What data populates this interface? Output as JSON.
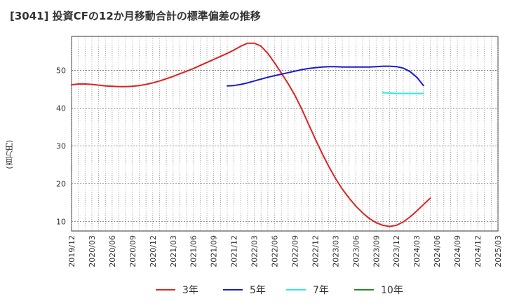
{
  "chart_data": {
    "type": "line",
    "title": "[3041]  投資CFの12か月移動合計の標準偏差の推移",
    "ylabel": "(百万円)",
    "xlabel": "",
    "ylim": [
      7.5,
      59
    ],
    "y_ticks": [
      10,
      20,
      30,
      40,
      50
    ],
    "x_ticks": [
      "2019/12",
      "2020/03",
      "2020/06",
      "2020/09",
      "2020/12",
      "2021/03",
      "2021/06",
      "2021/09",
      "2021/12",
      "2022/03",
      "2022/06",
      "2022/09",
      "2022/12",
      "2023/03",
      "2023/06",
      "2023/09",
      "2023/12",
      "2024/03",
      "2024/06",
      "2024/09",
      "2024/12",
      "2025/03"
    ],
    "grid": true,
    "legend_position": "bottom",
    "series": [
      {
        "name": "3年",
        "color": "#dd2222",
        "points": [
          [
            "2019/12",
            46.2
          ],
          [
            "2020/01",
            46.4
          ],
          [
            "2020/02",
            46.4
          ],
          [
            "2020/03",
            46.3
          ],
          [
            "2020/04",
            46.1
          ],
          [
            "2020/05",
            45.9
          ],
          [
            "2020/06",
            45.8
          ],
          [
            "2020/07",
            45.7
          ],
          [
            "2020/08",
            45.7
          ],
          [
            "2020/09",
            45.8
          ],
          [
            "2020/10",
            46.0
          ],
          [
            "2020/11",
            46.3
          ],
          [
            "2020/12",
            46.7
          ],
          [
            "2021/01",
            47.2
          ],
          [
            "2021/02",
            47.8
          ],
          [
            "2021/03",
            48.4
          ],
          [
            "2021/04",
            49.1
          ],
          [
            "2021/05",
            49.8
          ],
          [
            "2021/06",
            50.5
          ],
          [
            "2021/07",
            51.3
          ],
          [
            "2021/08",
            52.1
          ],
          [
            "2021/09",
            52.9
          ],
          [
            "2021/10",
            53.7
          ],
          [
            "2021/11",
            54.5
          ],
          [
            "2021/12",
            55.4
          ],
          [
            "2022/01",
            56.4
          ],
          [
            "2022/02",
            57.2
          ],
          [
            "2022/03",
            57.2
          ],
          [
            "2022/04",
            56.4
          ],
          [
            "2022/05",
            54.5
          ],
          [
            "2022/06",
            52.0
          ],
          [
            "2022/07",
            49.3
          ],
          [
            "2022/08",
            46.5
          ],
          [
            "2022/09",
            43.4
          ],
          [
            "2022/10",
            39.8
          ],
          [
            "2022/11",
            35.8
          ],
          [
            "2022/12",
            31.9
          ],
          [
            "2023/01",
            28.1
          ],
          [
            "2023/02",
            24.6
          ],
          [
            "2023/03",
            21.4
          ],
          [
            "2023/04",
            18.6
          ],
          [
            "2023/05",
            16.2
          ],
          [
            "2023/06",
            14.1
          ],
          [
            "2023/07",
            12.3
          ],
          [
            "2023/08",
            10.8
          ],
          [
            "2023/09",
            9.7
          ],
          [
            "2023/10",
            9.0
          ],
          [
            "2023/11",
            8.7
          ],
          [
            "2023/12",
            9.0
          ],
          [
            "2024/01",
            9.9
          ],
          [
            "2024/02",
            11.2
          ],
          [
            "2024/03",
            12.8
          ],
          [
            "2024/04",
            14.5
          ],
          [
            "2024/05",
            16.2
          ]
        ]
      },
      {
        "name": "5年",
        "color": "#1a1acc",
        "points": [
          [
            "2021/11",
            45.9
          ],
          [
            "2021/12",
            46.0
          ],
          [
            "2022/01",
            46.3
          ],
          [
            "2022/02",
            46.7
          ],
          [
            "2022/03",
            47.2
          ],
          [
            "2022/04",
            47.7
          ],
          [
            "2022/05",
            48.2
          ],
          [
            "2022/06",
            48.6
          ],
          [
            "2022/07",
            49.0
          ],
          [
            "2022/08",
            49.4
          ],
          [
            "2022/09",
            49.8
          ],
          [
            "2022/10",
            50.2
          ],
          [
            "2022/11",
            50.5
          ],
          [
            "2022/12",
            50.7
          ],
          [
            "2023/01",
            50.9
          ],
          [
            "2023/02",
            51.0
          ],
          [
            "2023/03",
            51.0
          ],
          [
            "2023/04",
            50.9
          ],
          [
            "2023/05",
            50.9
          ],
          [
            "2023/06",
            50.9
          ],
          [
            "2023/07",
            50.9
          ],
          [
            "2023/08",
            50.9
          ],
          [
            "2023/09",
            51.0
          ],
          [
            "2023/10",
            51.1
          ],
          [
            "2023/11",
            51.1
          ],
          [
            "2023/12",
            51.0
          ],
          [
            "2024/01",
            50.6
          ],
          [
            "2024/02",
            49.7
          ],
          [
            "2024/03",
            48.2
          ],
          [
            "2024/04",
            46.0
          ]
        ]
      },
      {
        "name": "7年",
        "color": "#33e5e5",
        "points": [
          [
            "2023/10",
            44.1
          ],
          [
            "2023/11",
            44.0
          ],
          [
            "2023/12",
            43.9
          ],
          [
            "2024/01",
            43.9
          ],
          [
            "2024/02",
            43.9
          ],
          [
            "2024/03",
            43.9
          ],
          [
            "2024/04",
            43.9
          ]
        ]
      },
      {
        "name": "10年",
        "color": "#228822",
        "points": []
      }
    ]
  }
}
